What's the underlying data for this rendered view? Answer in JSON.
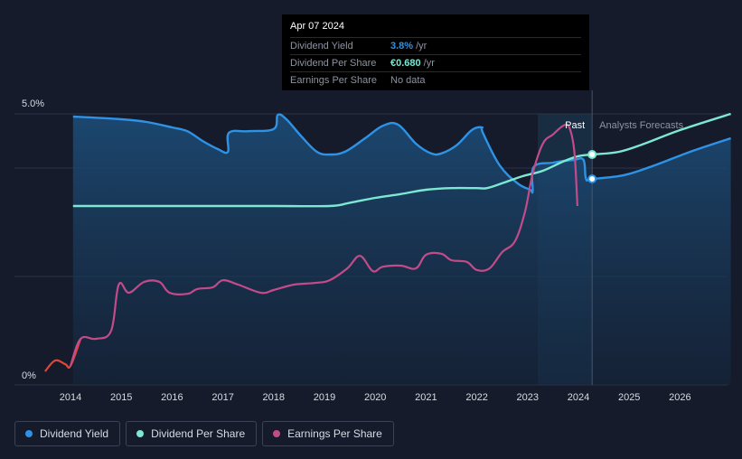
{
  "tooltip": {
    "date": "Apr 07 2024",
    "rows": [
      {
        "label": "Dividend Yield",
        "value": "3.8%",
        "unit": "/yr",
        "color": "#2e93e6"
      },
      {
        "label": "Dividend Per Share",
        "value": "€0.680",
        "unit": "/yr",
        "color": "#7de8d2"
      },
      {
        "label": "Earnings Per Share",
        "value": "No data",
        "unit": "",
        "color": "#8d93a0"
      }
    ]
  },
  "legend": [
    {
      "label": "Dividend Yield",
      "color": "#2e93e6"
    },
    {
      "label": "Dividend Per Share",
      "color": "#7de8d2"
    },
    {
      "label": "Earnings Per Share",
      "color": "#c44b8a"
    }
  ],
  "chart_data": {
    "type": "line",
    "title": "",
    "xlabel": "",
    "ylabel": "",
    "ylim": [
      0,
      5
    ],
    "xlim": [
      2013.45,
      2027.0
    ],
    "y_tick_labels": [
      "5.0%",
      "0%"
    ],
    "x_ticks": [
      "2014",
      "2015",
      "2016",
      "2017",
      "2018",
      "2019",
      "2020",
      "2021",
      "2022",
      "2023",
      "2024",
      "2025",
      "2026"
    ],
    "past_label": "Past",
    "forecast_label": "Analysts Forecasts",
    "highlight_x": 2024.27,
    "past_band_start": 2023.2,
    "series": [
      {
        "name": "Dividend Yield",
        "color": "#2e93e6",
        "fill": true,
        "points": [
          [
            2014.05,
            4.95
          ],
          [
            2015.0,
            4.9
          ],
          [
            2015.5,
            4.85
          ],
          [
            2016.0,
            4.75
          ],
          [
            2016.3,
            4.68
          ],
          [
            2016.6,
            4.5
          ],
          [
            2016.9,
            4.35
          ],
          [
            2017.1,
            4.3
          ],
          [
            2017.12,
            4.65
          ],
          [
            2017.5,
            4.68
          ],
          [
            2018.0,
            4.72
          ],
          [
            2018.08,
            4.98
          ],
          [
            2018.25,
            4.9
          ],
          [
            2018.55,
            4.58
          ],
          [
            2018.85,
            4.3
          ],
          [
            2019.1,
            4.25
          ],
          [
            2019.4,
            4.3
          ],
          [
            2019.8,
            4.55
          ],
          [
            2020.15,
            4.78
          ],
          [
            2020.45,
            4.8
          ],
          [
            2020.8,
            4.45
          ],
          [
            2021.1,
            4.27
          ],
          [
            2021.3,
            4.27
          ],
          [
            2021.6,
            4.42
          ],
          [
            2021.9,
            4.7
          ],
          [
            2022.1,
            4.75
          ],
          [
            2022.12,
            4.65
          ],
          [
            2022.45,
            4.05
          ],
          [
            2022.8,
            3.72
          ],
          [
            2023.05,
            3.6
          ],
          [
            2023.1,
            3.58
          ],
          [
            2023.12,
            4.02
          ],
          [
            2023.5,
            4.1
          ],
          [
            2023.9,
            4.15
          ],
          [
            2024.1,
            4.15
          ],
          [
            2024.15,
            3.8
          ],
          [
            2024.27,
            3.8
          ],
          [
            2024.9,
            3.87
          ],
          [
            2025.5,
            4.05
          ],
          [
            2026.2,
            4.3
          ],
          [
            2027.0,
            4.55
          ]
        ]
      },
      {
        "name": "Dividend Per Share",
        "color": "#7de8d2",
        "fill": false,
        "points": [
          [
            2014.05,
            3.3
          ],
          [
            2016.0,
            3.3
          ],
          [
            2018.0,
            3.3
          ],
          [
            2019.1,
            3.3
          ],
          [
            2019.5,
            3.36
          ],
          [
            2020.0,
            3.45
          ],
          [
            2020.5,
            3.52
          ],
          [
            2021.0,
            3.6
          ],
          [
            2021.5,
            3.63
          ],
          [
            2022.0,
            3.63
          ],
          [
            2022.2,
            3.63
          ],
          [
            2022.5,
            3.72
          ],
          [
            2022.9,
            3.85
          ],
          [
            2023.3,
            3.95
          ],
          [
            2023.7,
            4.12
          ],
          [
            2024.0,
            4.22
          ],
          [
            2024.27,
            4.25
          ],
          [
            2024.8,
            4.3
          ],
          [
            2025.3,
            4.45
          ],
          [
            2026.0,
            4.7
          ],
          [
            2027.0,
            5.0
          ]
        ]
      },
      {
        "name": "Earnings Per Share",
        "color": "#c44b8a",
        "fill": false,
        "points": [
          [
            2013.5,
            0.25
          ],
          [
            2013.7,
            0.45
          ],
          [
            2013.9,
            0.38
          ],
          [
            2014.0,
            0.35
          ],
          [
            2014.2,
            0.85
          ],
          [
            2014.5,
            0.85
          ],
          [
            2014.8,
            1.0
          ],
          [
            2014.95,
            1.85
          ],
          [
            2015.15,
            1.7
          ],
          [
            2015.45,
            1.9
          ],
          [
            2015.75,
            1.9
          ],
          [
            2015.95,
            1.7
          ],
          [
            2016.3,
            1.68
          ],
          [
            2016.5,
            1.77
          ],
          [
            2016.8,
            1.8
          ],
          [
            2017.0,
            1.93
          ],
          [
            2017.3,
            1.85
          ],
          [
            2017.75,
            1.7
          ],
          [
            2018.0,
            1.75
          ],
          [
            2018.4,
            1.85
          ],
          [
            2018.8,
            1.88
          ],
          [
            2019.1,
            1.93
          ],
          [
            2019.45,
            2.15
          ],
          [
            2019.7,
            2.38
          ],
          [
            2019.95,
            2.1
          ],
          [
            2020.15,
            2.18
          ],
          [
            2020.5,
            2.2
          ],
          [
            2020.8,
            2.15
          ],
          [
            2021.0,
            2.4
          ],
          [
            2021.3,
            2.42
          ],
          [
            2021.5,
            2.3
          ],
          [
            2021.8,
            2.27
          ],
          [
            2022.0,
            2.12
          ],
          [
            2022.25,
            2.15
          ],
          [
            2022.5,
            2.45
          ],
          [
            2022.75,
            2.65
          ],
          [
            2022.95,
            3.2
          ],
          [
            2023.1,
            3.9
          ],
          [
            2023.3,
            4.45
          ],
          [
            2023.5,
            4.62
          ],
          [
            2023.7,
            4.78
          ],
          [
            2023.82,
            4.75
          ],
          [
            2023.92,
            4.3
          ],
          [
            2023.98,
            3.3
          ]
        ]
      }
    ]
  }
}
